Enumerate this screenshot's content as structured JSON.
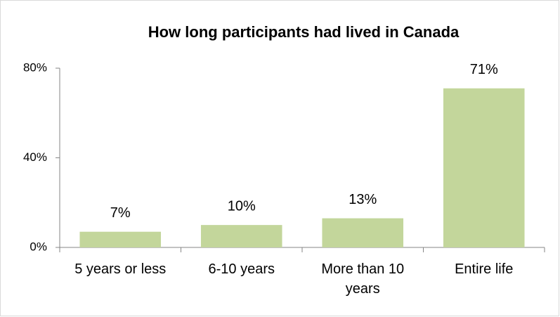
{
  "chart_data": {
    "type": "bar",
    "title": "How long participants had lived in Canada",
    "categories": [
      "5 years or less",
      "6-10 years",
      "More than 10 years",
      "Entire life"
    ],
    "values": [
      7,
      10,
      13,
      71
    ],
    "value_labels": [
      "7%",
      "10%",
      "13%",
      "71%"
    ],
    "color": "#c3d69b",
    "ylim": [
      0,
      80
    ],
    "yticks": [
      {
        "value": 0,
        "label": "0%"
      },
      {
        "value": 40,
        "label": "40%"
      },
      {
        "value": 80,
        "label": "80%"
      }
    ],
    "grid": false
  }
}
